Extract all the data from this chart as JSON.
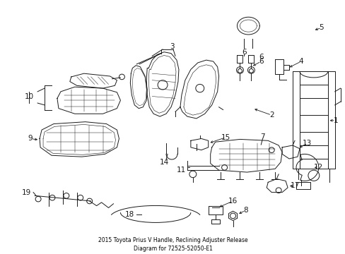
{
  "title": "2015 Toyota Prius V Handle, Reclining Adjuster Release\nDiagram for 72525-52050-E1",
  "background_color": "#ffffff",
  "figsize": [
    4.89,
    3.6
  ],
  "dpi": 100,
  "lc": "#1a1a1a",
  "label_fs": 7.5
}
